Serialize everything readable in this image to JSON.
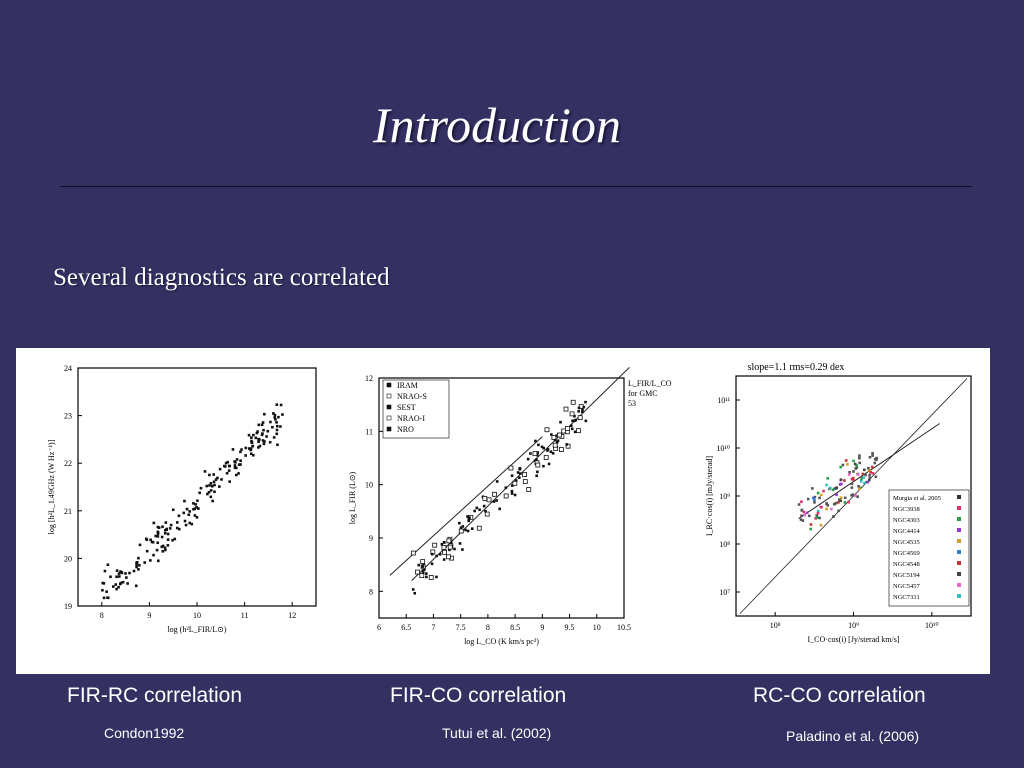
{
  "slide": {
    "title": "Introduction",
    "subtitle": "Several diagnostics are correlated"
  },
  "panels": [
    {
      "caption": "FIR-RC correlation",
      "reference": "Condon1992"
    },
    {
      "caption": "FIR-CO correlation",
      "reference": "Tutui et al. (2002)"
    },
    {
      "caption": "RC-CO correlation",
      "reference": "Paladino et al. (2006)"
    }
  ],
  "chart_data": [
    {
      "type": "scatter",
      "xlabel": "log (h²L_FIR/L⊙)",
      "ylabel": "log [h²L_1.49GHz (W Hz⁻¹)]",
      "xlim": [
        7.5,
        12.5
      ],
      "ylim": [
        19,
        24
      ],
      "xticks": [
        "8",
        "9",
        "10",
        "11",
        "12"
      ],
      "yticks": [
        "19",
        "20",
        "21",
        "22",
        "23",
        "24"
      ],
      "trend": {
        "slope": 1.0,
        "intercept": 11.2,
        "x_range": [
          8.0,
          11.8
        ],
        "scatter_dex": 0.25,
        "n_points": 200
      },
      "grid": false
    },
    {
      "type": "scatter",
      "xlabel": "log L_CO (K km/s pc²)",
      "ylabel": "log L_FIR (L⊙)",
      "xlim": [
        6,
        10.5
      ],
      "ylim": [
        7.5,
        12
      ],
      "xticks": [
        "6",
        "6.5",
        "7",
        "7.5",
        "8",
        "8.5",
        "9",
        "9.5",
        "10",
        "10.5"
      ],
      "yticks": [
        "8",
        "9",
        "10",
        "11",
        "12"
      ],
      "legend": [
        "IRAM",
        "NRAO-S",
        "SEST",
        "NRAO-I",
        "NRO"
      ],
      "legend_position": "top-left",
      "annotation": [
        "L_FIR/L_CO",
        "for GMC",
        "53"
      ],
      "trend": {
        "slope": 1.0,
        "intercept": 1.6,
        "x_range": [
          6.6,
          9.8
        ],
        "scatter_dex": 0.25,
        "n_points": 150
      },
      "grid": false
    },
    {
      "type": "scatter",
      "scale": "log",
      "title": "slope=1.1 rms=0.29 dex",
      "xlabel": "I_CO·cos(i) [Jy/sterad km/s]",
      "ylabel": "I_RC·cos(i) [mJy/sterad]",
      "xlim": [
        7.5,
        10.5
      ],
      "ylim": [
        6.5,
        11.5
      ],
      "xticks": [
        "10⁸",
        "10⁹",
        "10¹⁰"
      ],
      "yticks": [
        "10⁷",
        "10⁸",
        "10⁹",
        "10¹⁰",
        "10¹¹"
      ],
      "legend": [
        "Murgia et al. 2005",
        "NGC3938",
        "NGC4303",
        "NGC4414",
        "NGC4535",
        "NGC4569",
        "NGC4548",
        "NGC5194",
        "NGC5457",
        "NGC7331"
      ],
      "legend_position": "bottom-right",
      "trend": {
        "slope": 1.1,
        "intercept": -0.6,
        "x_range": [
          8.3,
          9.3
        ],
        "scatter_dex": 0.29,
        "n_points": 120
      },
      "colors": [
        "#e0306a",
        "#2a9c4a",
        "#9a3ad0",
        "#d0a020",
        "#2f7fd8",
        "#cc3030",
        "#444444",
        "#ee66cc",
        "#30c0c0"
      ],
      "grid": false
    }
  ]
}
